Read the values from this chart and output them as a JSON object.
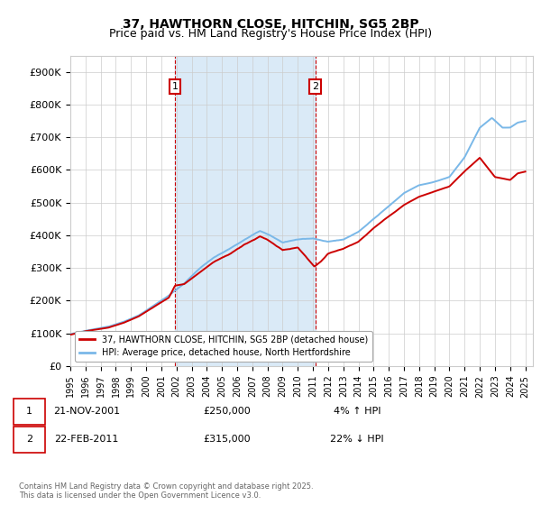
{
  "title": "37, HAWTHORN CLOSE, HITCHIN, SG5 2BP",
  "subtitle": "Price paid vs. HM Land Registry's House Price Index (HPI)",
  "legend_line1": "37, HAWTHORN CLOSE, HITCHIN, SG5 2BP (detached house)",
  "legend_line2": "HPI: Average price, detached house, North Hertfordshire",
  "annotation1_label": "1",
  "annotation1_date": "21-NOV-2001",
  "annotation1_price": "£250,000",
  "annotation1_hpi": "4% ↑ HPI",
  "annotation1_year": 2001.9,
  "annotation2_label": "2",
  "annotation2_date": "22-FEB-2011",
  "annotation2_price": "£315,000",
  "annotation2_hpi": "22% ↓ HPI",
  "annotation2_year": 2011.15,
  "ymax": 950000,
  "ymin": 0,
  "xmin": 1995.0,
  "xmax": 2025.5,
  "ytick_values": [
    0,
    100000,
    200000,
    300000,
    400000,
    500000,
    600000,
    700000,
    800000,
    900000
  ],
  "ytick_labels": [
    "£0",
    "£100K",
    "£200K",
    "£300K",
    "£400K",
    "£500K",
    "£600K",
    "£700K",
    "£800K",
    "£900K"
  ],
  "hpi_color": "#7ab8e8",
  "price_color": "#cc0000",
  "annotation_box_color": "#cc0000",
  "background_color": "#ffffff",
  "plot_bg_color": "#ffffff",
  "shade_color": "#daeaf7",
  "grid_color": "#cccccc",
  "footer_text": "Contains HM Land Registry data © Crown copyright and database right 2025.\nThis data is licensed under the Open Government Licence v3.0.",
  "xtick_years": [
    1995,
    1996,
    1997,
    1998,
    1999,
    2000,
    2001,
    2002,
    2003,
    2004,
    2005,
    2006,
    2007,
    2008,
    2009,
    2010,
    2011,
    2012,
    2013,
    2014,
    2015,
    2016,
    2017,
    2018,
    2019,
    2020,
    2021,
    2022,
    2023,
    2024,
    2025
  ]
}
